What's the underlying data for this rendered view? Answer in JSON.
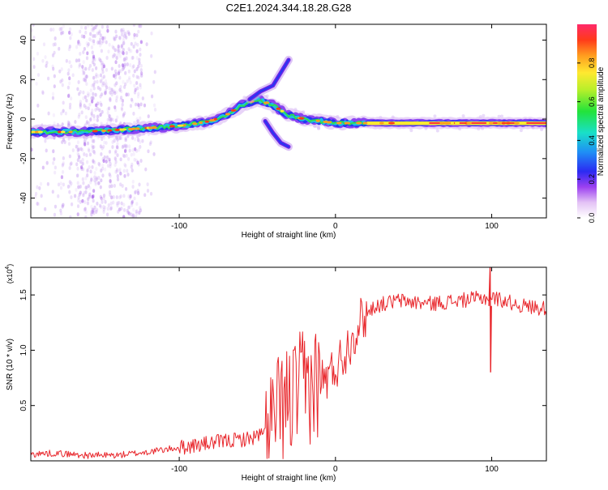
{
  "title": "C2E1.2024.344.18.28.G28",
  "chart_data": [
    {
      "type": "heatmap",
      "xlabel": "Height of straight line (km)",
      "ylabel": "Frequency (Hz)",
      "xlim": [
        -195,
        135
      ],
      "ylim": [
        -50,
        48
      ],
      "xticks": [
        -100,
        0,
        100
      ],
      "yticks": [
        -40,
        -20,
        0,
        20,
        40
      ],
      "ridge": [
        {
          "x": -195,
          "y": -6.5
        },
        {
          "x": -170,
          "y": -6.5
        },
        {
          "x": -150,
          "y": -6
        },
        {
          "x": -130,
          "y": -5
        },
        {
          "x": -110,
          "y": -4
        },
        {
          "x": -95,
          "y": -3
        },
        {
          "x": -80,
          "y": -1
        },
        {
          "x": -70,
          "y": 2
        },
        {
          "x": -60,
          "y": 7
        },
        {
          "x": -50,
          "y": 10
        },
        {
          "x": -40,
          "y": 7
        },
        {
          "x": -30,
          "y": 2
        },
        {
          "x": -20,
          "y": 0
        },
        {
          "x": -10,
          "y": -1
        },
        {
          "x": 0,
          "y": -2
        },
        {
          "x": 20,
          "y": -2
        },
        {
          "x": 60,
          "y": -2
        },
        {
          "x": 100,
          "y": -2
        },
        {
          "x": 135,
          "y": -2
        }
      ],
      "upper_branch": [
        {
          "x": -55,
          "y": 10
        },
        {
          "x": -48,
          "y": 14
        },
        {
          "x": -40,
          "y": 17
        },
        {
          "x": -30,
          "y": 30
        }
      ],
      "lower_branch": [
        {
          "x": -45,
          "y": -1
        },
        {
          "x": -40,
          "y": -7
        },
        {
          "x": -35,
          "y": -12
        },
        {
          "x": -30,
          "y": -14
        }
      ],
      "colorbar": {
        "label": "Normalized spectral amplitude",
        "range": [
          0,
          1
        ],
        "ticks": [
          "0.0",
          "0.2",
          "0.4",
          "0.6",
          "0.8"
        ]
      }
    },
    {
      "type": "line",
      "xlabel": "Height of straight line (km)",
      "ylabel": "SNR (10 * v/v)",
      "multiplier": "(x10",
      "multiplier_exp": "4",
      "xlim": [
        -195,
        135
      ],
      "ylim": [
        0,
        1.75
      ],
      "xticks": [
        -100,
        0,
        100
      ],
      "yticks": [
        "0.5",
        "1.0",
        "1.5"
      ],
      "color": "#e8262b",
      "knots": [
        {
          "x": -195,
          "y": 0.06
        },
        {
          "x": -180,
          "y": 0.07
        },
        {
          "x": -160,
          "y": 0.05
        },
        {
          "x": -140,
          "y": 0.05
        },
        {
          "x": -120,
          "y": 0.08
        },
        {
          "x": -100,
          "y": 0.12
        },
        {
          "x": -85,
          "y": 0.15
        },
        {
          "x": -70,
          "y": 0.18
        },
        {
          "x": -55,
          "y": 0.2
        },
        {
          "x": -45,
          "y": 0.25
        },
        {
          "x": -35,
          "y": 0.45
        },
        {
          "x": -25,
          "y": 0.6
        },
        {
          "x": -15,
          "y": 0.7
        },
        {
          "x": -5,
          "y": 0.75
        },
        {
          "x": 5,
          "y": 0.95
        },
        {
          "x": 15,
          "y": 1.25
        },
        {
          "x": 25,
          "y": 1.4
        },
        {
          "x": 40,
          "y": 1.45
        },
        {
          "x": 60,
          "y": 1.42
        },
        {
          "x": 80,
          "y": 1.45
        },
        {
          "x": 100,
          "y": 1.48
        },
        {
          "x": 120,
          "y": 1.4
        },
        {
          "x": 135,
          "y": 1.38
        }
      ],
      "spike": {
        "x": 99,
        "high": 1.75,
        "low": 0.8
      }
    }
  ]
}
